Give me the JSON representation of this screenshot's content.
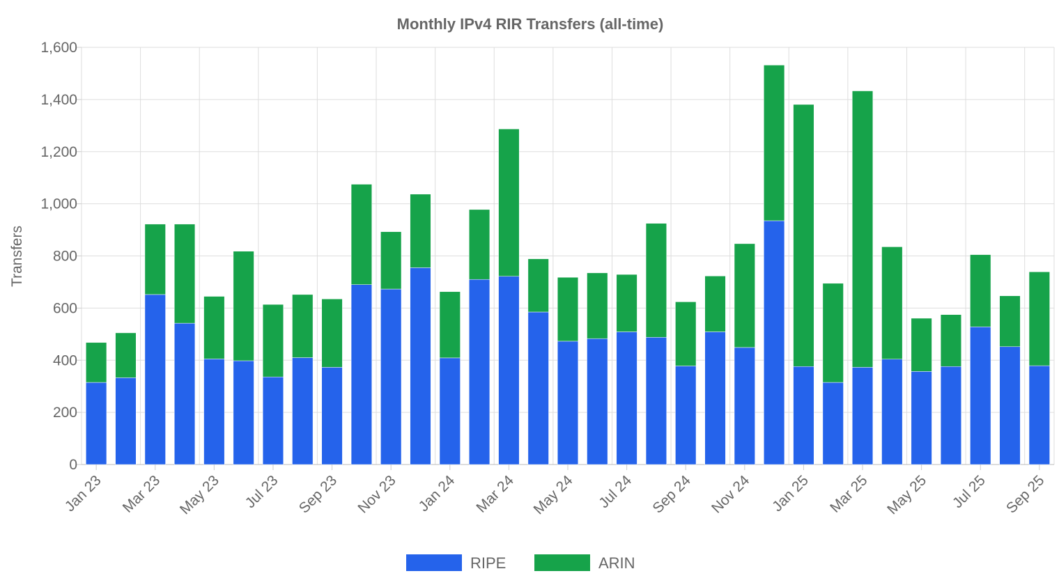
{
  "chart_data": {
    "type": "bar",
    "stacked": true,
    "title": "Monthly IPv4 RIR Transfers (all-time)",
    "xlabel": "",
    "ylabel": "Transfers",
    "ylim": [
      0,
      1600
    ],
    "yticks": [
      "0",
      "200",
      "400",
      "600",
      "800",
      "1,000",
      "1,200",
      "1,400",
      "1,600"
    ],
    "ytick_values": [
      0,
      200,
      400,
      600,
      800,
      1000,
      1200,
      1400,
      1600
    ],
    "categories": [
      "Jan 23",
      "Feb 23",
      "Mar 23",
      "Apr 23",
      "May 23",
      "Jun 23",
      "Jul 23",
      "Aug 23",
      "Sep 23",
      "Oct 23",
      "Nov 23",
      "Dec 23",
      "Jan 24",
      "Feb 24",
      "Mar 24",
      "Apr 24",
      "May 24",
      "Jun 24",
      "Jul 24",
      "Aug 24",
      "Sep 24",
      "Oct 24",
      "Nov 24",
      "Dec 24",
      "Jan 25",
      "Feb 25",
      "Mar 25",
      "Apr 25",
      "May 25",
      "Jun 25",
      "Jul 25",
      "Aug 25",
      "Sep 25"
    ],
    "tick_labels": [
      "Jan 23",
      "Mar 23",
      "May 23",
      "Jul 23",
      "Sep 23",
      "Nov 23",
      "Jan 24",
      "Mar 24",
      "May 24",
      "Jul 24",
      "Sep 24",
      "Nov 24",
      "Jan 25",
      "Mar 25",
      "May 25",
      "Jul 25",
      "Sep 25"
    ],
    "tick_label_indices": [
      0,
      2,
      4,
      6,
      8,
      10,
      12,
      14,
      16,
      18,
      20,
      22,
      24,
      26,
      28,
      30,
      32
    ],
    "series": [
      {
        "name": "RIPE",
        "color": "#2563eb",
        "values": [
          315,
          333,
          652,
          542,
          405,
          398,
          336,
          410,
          373,
          690,
          673,
          755,
          409,
          710,
          722,
          585,
          473,
          483,
          509,
          488,
          378,
          509,
          449,
          935,
          376,
          315,
          373,
          404,
          357,
          376,
          528,
          452,
          379
        ]
      },
      {
        "name": "ARIN",
        "color": "#16a34a",
        "values": [
          153,
          172,
          270,
          380,
          240,
          420,
          278,
          242,
          262,
          385,
          220,
          282,
          254,
          268,
          565,
          204,
          245,
          252,
          220,
          437,
          246,
          214,
          398,
          597,
          1005,
          380,
          1060,
          431,
          204,
          199,
          277,
          195,
          360
        ]
      }
    ],
    "grid": true,
    "legend_position": "bottom-center"
  }
}
